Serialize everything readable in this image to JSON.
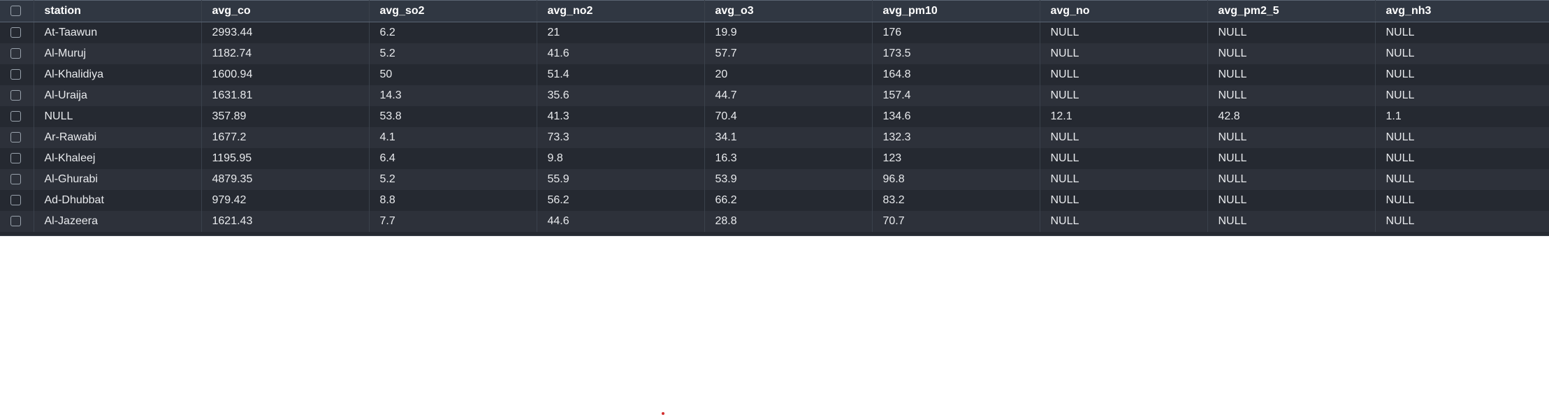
{
  "grid": {
    "columns": [
      "station",
      "avg_co",
      "avg_so2",
      "avg_no2",
      "avg_o3",
      "avg_pm10",
      "avg_no",
      "avg_pm2_5",
      "avg_nh3"
    ],
    "rows": [
      [
        "At-Taawun",
        "2993.44",
        "6.2",
        "21",
        "19.9",
        "176",
        "NULL",
        "NULL",
        "NULL"
      ],
      [
        "Al-Muruj",
        "1182.74",
        "5.2",
        "41.6",
        "57.7",
        "173.5",
        "NULL",
        "NULL",
        "NULL"
      ],
      [
        "Al-Khalidiya",
        "1600.94",
        "50",
        "51.4",
        "20",
        "164.8",
        "NULL",
        "NULL",
        "NULL"
      ],
      [
        "Al-Uraija",
        "1631.81",
        "14.3",
        "35.6",
        "44.7",
        "157.4",
        "NULL",
        "NULL",
        "NULL"
      ],
      [
        "NULL",
        "357.89",
        "53.8",
        "41.3",
        "70.4",
        "134.6",
        "12.1",
        "42.8",
        "1.1"
      ],
      [
        "Ar-Rawabi",
        "1677.2",
        "4.1",
        "73.3",
        "34.1",
        "132.3",
        "NULL",
        "NULL",
        "NULL"
      ],
      [
        "Al-Khaleej",
        "1195.95",
        "6.4",
        "9.8",
        "16.3",
        "123",
        "NULL",
        "NULL",
        "NULL"
      ],
      [
        "Al-Ghurabi",
        "4879.35",
        "5.2",
        "55.9",
        "53.9",
        "96.8",
        "NULL",
        "NULL",
        "NULL"
      ],
      [
        "Ad-Dhubbat",
        "979.42",
        "8.8",
        "56.2",
        "66.2",
        "83.2",
        "NULL",
        "NULL",
        "NULL"
      ],
      [
        "Al-Jazeera",
        "1621.43",
        "7.7",
        "44.6",
        "28.8",
        "70.7",
        "NULL",
        "NULL",
        "NULL"
      ]
    ]
  },
  "colors": {
    "grid_background": "#252931",
    "row_alt": "#2d313a",
    "header_background": "#303742",
    "marker": "#d32f2f"
  }
}
